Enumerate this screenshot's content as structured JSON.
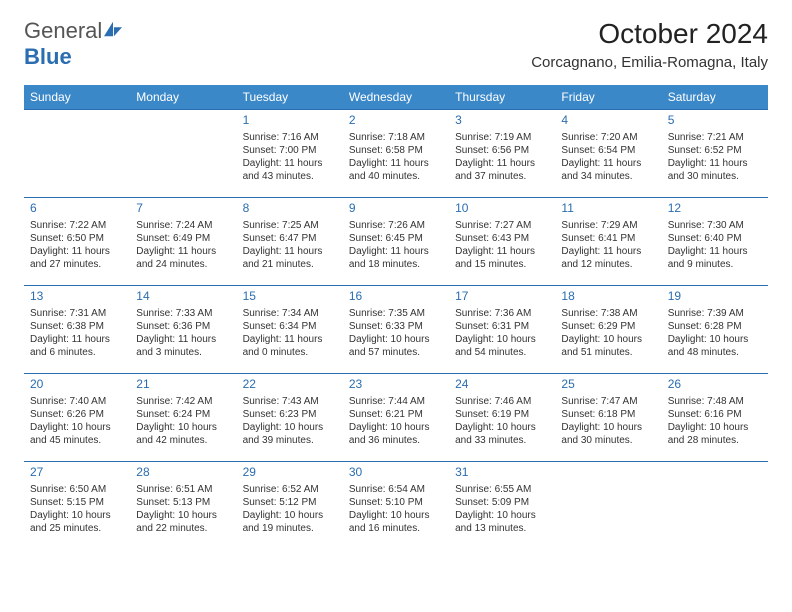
{
  "logo": {
    "text_general": "General",
    "text_blue": "Blue",
    "icon_color": "#2a6db0"
  },
  "title": "October 2024",
  "location": "Corcagnano, Emilia-Romagna, Italy",
  "colors": {
    "header_bg": "#3b88c9",
    "header_text": "#ffffff",
    "border": "#2a6db0",
    "daynum": "#2a6db0",
    "body_text": "#333333"
  },
  "typography": {
    "title_fontsize": 28,
    "location_fontsize": 15,
    "dayhead_fontsize": 12,
    "daynum_fontsize": 12,
    "cell_fontsize": 10
  },
  "day_headers": [
    "Sunday",
    "Monday",
    "Tuesday",
    "Wednesday",
    "Thursday",
    "Friday",
    "Saturday"
  ],
  "grid": [
    [
      null,
      null,
      {
        "n": "1",
        "sr": "7:16 AM",
        "ss": "7:00 PM",
        "dl": "11 hours and 43 minutes."
      },
      {
        "n": "2",
        "sr": "7:18 AM",
        "ss": "6:58 PM",
        "dl": "11 hours and 40 minutes."
      },
      {
        "n": "3",
        "sr": "7:19 AM",
        "ss": "6:56 PM",
        "dl": "11 hours and 37 minutes."
      },
      {
        "n": "4",
        "sr": "7:20 AM",
        "ss": "6:54 PM",
        "dl": "11 hours and 34 minutes."
      },
      {
        "n": "5",
        "sr": "7:21 AM",
        "ss": "6:52 PM",
        "dl": "11 hours and 30 minutes."
      }
    ],
    [
      {
        "n": "6",
        "sr": "7:22 AM",
        "ss": "6:50 PM",
        "dl": "11 hours and 27 minutes."
      },
      {
        "n": "7",
        "sr": "7:24 AM",
        "ss": "6:49 PM",
        "dl": "11 hours and 24 minutes."
      },
      {
        "n": "8",
        "sr": "7:25 AM",
        "ss": "6:47 PM",
        "dl": "11 hours and 21 minutes."
      },
      {
        "n": "9",
        "sr": "7:26 AM",
        "ss": "6:45 PM",
        "dl": "11 hours and 18 minutes."
      },
      {
        "n": "10",
        "sr": "7:27 AM",
        "ss": "6:43 PM",
        "dl": "11 hours and 15 minutes."
      },
      {
        "n": "11",
        "sr": "7:29 AM",
        "ss": "6:41 PM",
        "dl": "11 hours and 12 minutes."
      },
      {
        "n": "12",
        "sr": "7:30 AM",
        "ss": "6:40 PM",
        "dl": "11 hours and 9 minutes."
      }
    ],
    [
      {
        "n": "13",
        "sr": "7:31 AM",
        "ss": "6:38 PM",
        "dl": "11 hours and 6 minutes."
      },
      {
        "n": "14",
        "sr": "7:33 AM",
        "ss": "6:36 PM",
        "dl": "11 hours and 3 minutes."
      },
      {
        "n": "15",
        "sr": "7:34 AM",
        "ss": "6:34 PM",
        "dl": "11 hours and 0 minutes."
      },
      {
        "n": "16",
        "sr": "7:35 AM",
        "ss": "6:33 PM",
        "dl": "10 hours and 57 minutes."
      },
      {
        "n": "17",
        "sr": "7:36 AM",
        "ss": "6:31 PM",
        "dl": "10 hours and 54 minutes."
      },
      {
        "n": "18",
        "sr": "7:38 AM",
        "ss": "6:29 PM",
        "dl": "10 hours and 51 minutes."
      },
      {
        "n": "19",
        "sr": "7:39 AM",
        "ss": "6:28 PM",
        "dl": "10 hours and 48 minutes."
      }
    ],
    [
      {
        "n": "20",
        "sr": "7:40 AM",
        "ss": "6:26 PM",
        "dl": "10 hours and 45 minutes."
      },
      {
        "n": "21",
        "sr": "7:42 AM",
        "ss": "6:24 PM",
        "dl": "10 hours and 42 minutes."
      },
      {
        "n": "22",
        "sr": "7:43 AM",
        "ss": "6:23 PM",
        "dl": "10 hours and 39 minutes."
      },
      {
        "n": "23",
        "sr": "7:44 AM",
        "ss": "6:21 PM",
        "dl": "10 hours and 36 minutes."
      },
      {
        "n": "24",
        "sr": "7:46 AM",
        "ss": "6:19 PM",
        "dl": "10 hours and 33 minutes."
      },
      {
        "n": "25",
        "sr": "7:47 AM",
        "ss": "6:18 PM",
        "dl": "10 hours and 30 minutes."
      },
      {
        "n": "26",
        "sr": "7:48 AM",
        "ss": "6:16 PM",
        "dl": "10 hours and 28 minutes."
      }
    ],
    [
      {
        "n": "27",
        "sr": "6:50 AM",
        "ss": "5:15 PM",
        "dl": "10 hours and 25 minutes."
      },
      {
        "n": "28",
        "sr": "6:51 AM",
        "ss": "5:13 PM",
        "dl": "10 hours and 22 minutes."
      },
      {
        "n": "29",
        "sr": "6:52 AM",
        "ss": "5:12 PM",
        "dl": "10 hours and 19 minutes."
      },
      {
        "n": "30",
        "sr": "6:54 AM",
        "ss": "5:10 PM",
        "dl": "10 hours and 16 minutes."
      },
      {
        "n": "31",
        "sr": "6:55 AM",
        "ss": "5:09 PM",
        "dl": "10 hours and 13 minutes."
      },
      null,
      null
    ]
  ],
  "labels": {
    "sunrise": "Sunrise:",
    "sunset": "Sunset:",
    "daylight": "Daylight:"
  }
}
